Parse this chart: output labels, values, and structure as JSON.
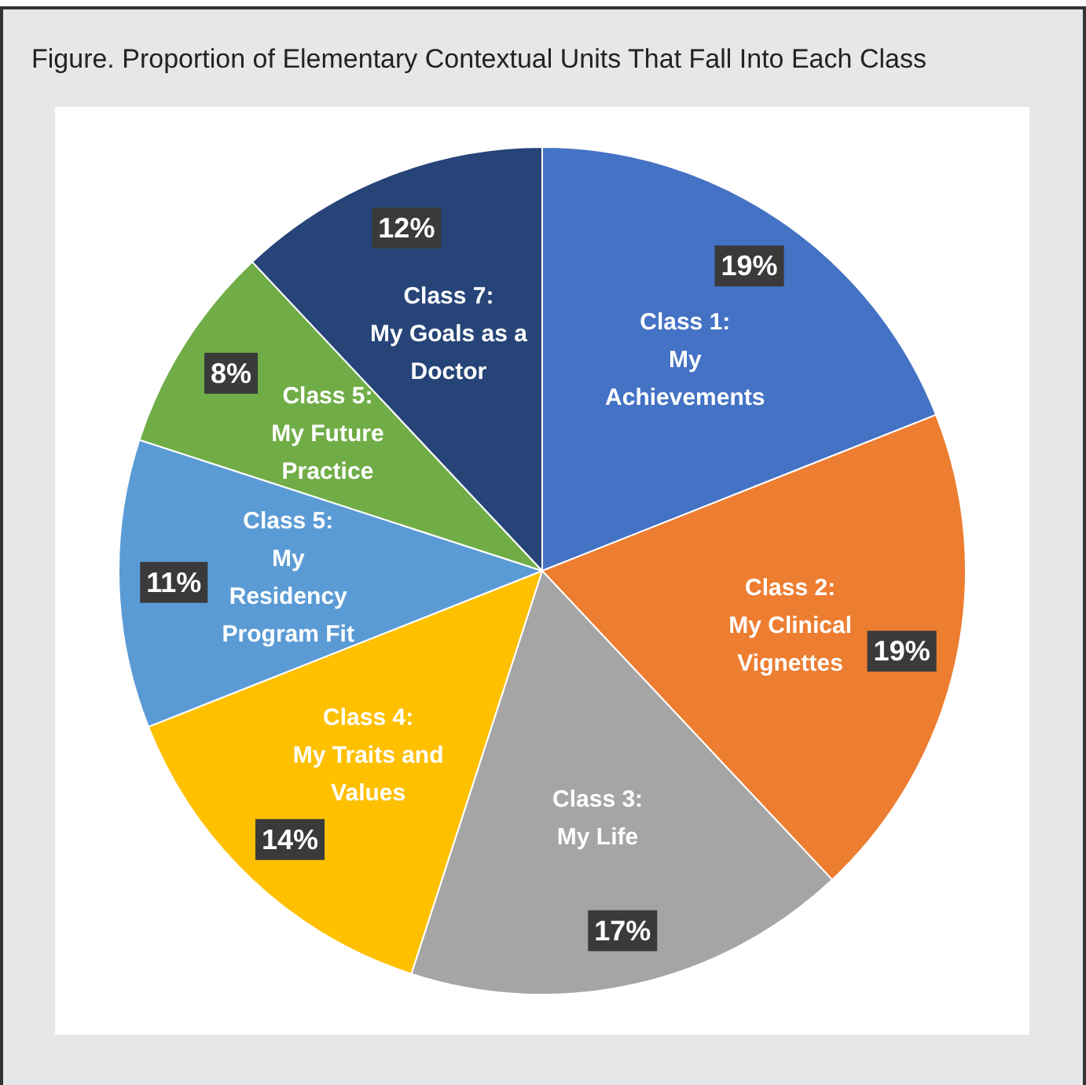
{
  "chart_data": {
    "type": "pie",
    "title": "Figure. Proportion of Elementary Contextual Units That Fall Into Each Class",
    "categories": [
      "Class 1: My Achievements",
      "Class 2: My Clinical Vignettes",
      "Class 3: My Life",
      "Class 4: My Traits and Values",
      "Class 5: My Residency Program Fit",
      "Class 5: My Future Practice",
      "Class 7: My Goals as a Doctor"
    ],
    "values": [
      19,
      19,
      17,
      14,
      11,
      8,
      12
    ],
    "value_labels": [
      "19%",
      "19%",
      "17%",
      "14%",
      "11%",
      "8%",
      "12%"
    ],
    "colors": [
      "#4472c4",
      "#ed7d31",
      "#a5a5a5",
      "#ffc000",
      "#5b9bd5",
      "#70ad47",
      "#264478"
    ],
    "legend": false
  }
}
